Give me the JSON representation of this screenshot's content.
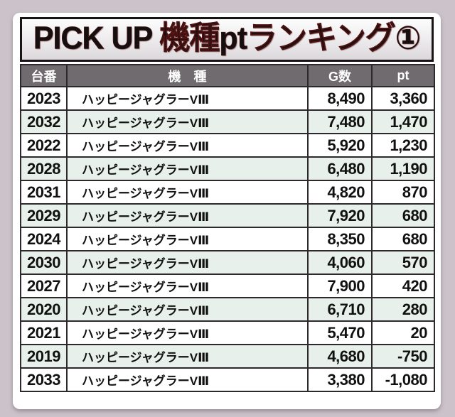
{
  "title": "PICK UP 機種ptランキング①",
  "colors": {
    "page_background": "#cbc3c9",
    "card_background": "#ffffff",
    "header_background": "#6f6b6e",
    "header_text": "#ffffff",
    "row_alt_background": "#e7f0ea",
    "border": "#2c282b",
    "title_text": "#160f10",
    "title_outline": "#4e1212"
  },
  "table": {
    "headers": [
      "台番",
      "機　種",
      "G数",
      "pt"
    ],
    "rows": [
      [
        "2023",
        "ハッピージャグラーVⅢ",
        "8,490",
        "3,360"
      ],
      [
        "2032",
        "ハッピージャグラーVⅢ",
        "7,480",
        "1,470"
      ],
      [
        "2022",
        "ハッピージャグラーVⅢ",
        "5,920",
        "1,230"
      ],
      [
        "2028",
        "ハッピージャグラーVⅢ",
        "6,480",
        "1,190"
      ],
      [
        "2031",
        "ハッピージャグラーVⅢ",
        "4,820",
        "870"
      ],
      [
        "2029",
        "ハッピージャグラーVⅢ",
        "7,920",
        "680"
      ],
      [
        "2024",
        "ハッピージャグラーVⅢ",
        "8,350",
        "680"
      ],
      [
        "2030",
        "ハッピージャグラーVⅢ",
        "4,060",
        "570"
      ],
      [
        "2027",
        "ハッピージャグラーVⅢ",
        "7,900",
        "420"
      ],
      [
        "2020",
        "ハッピージャグラーVⅢ",
        "6,710",
        "280"
      ],
      [
        "2021",
        "ハッピージャグラーVⅢ",
        "5,470",
        "20"
      ],
      [
        "2019",
        "ハッピージャグラーVⅢ",
        "4,680",
        "-750"
      ],
      [
        "2033",
        "ハッピージャグラーVⅢ",
        "3,380",
        "-1,080"
      ]
    ]
  },
  "chart_data": {
    "type": "table",
    "title": "PICK UP 機種ptランキング①",
    "columns": [
      "台番",
      "機種",
      "G数",
      "pt"
    ],
    "machine_numbers": [
      2023,
      2032,
      2022,
      2028,
      2031,
      2029,
      2024,
      2030,
      2027,
      2020,
      2021,
      2019,
      2033
    ],
    "machine_name": "ハッピージャグラーVⅢ",
    "g_counts": [
      8490,
      7480,
      5920,
      6480,
      4820,
      7920,
      8350,
      4060,
      7900,
      6710,
      5470,
      4680,
      3380
    ],
    "pt_values": [
      3360,
      1470,
      1230,
      1190,
      870,
      680,
      680,
      570,
      420,
      280,
      20,
      -750,
      -1080
    ]
  }
}
